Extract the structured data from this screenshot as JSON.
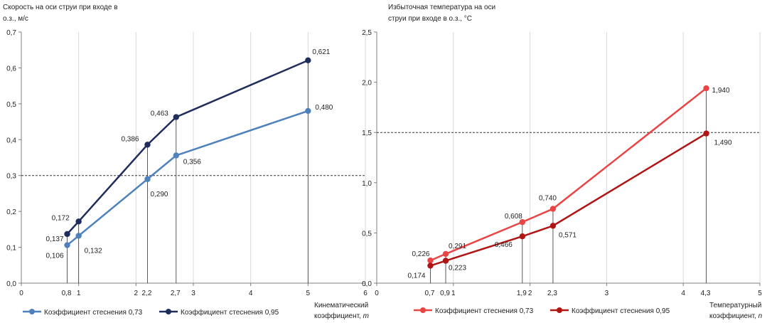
{
  "chart_data": [
    {
      "type": "line",
      "ylabel_lines": [
        "Скорость на оси струи при входе в",
        "о.з., м/с"
      ],
      "xlabel_lines": [
        "Кинематический",
        "коэффициент, "
      ],
      "xlabel_symbol": "m",
      "xlim": [
        0,
        6
      ],
      "ylim": [
        0,
        0.7
      ],
      "x_ticks": [
        "0",
        "1",
        "2",
        "3",
        "4",
        "5",
        "6"
      ],
      "y_ticks": [
        "0,0",
        "0,1",
        "0,2",
        "0,3",
        "0,4",
        "0,5",
        "0,6",
        "0,7"
      ],
      "x_special_ticks": [
        {
          "x": 0.8,
          "label": "0,8"
        },
        {
          "x": 2.2,
          "label": "2,2"
        },
        {
          "x": 2.7,
          "label": "2,7"
        }
      ],
      "reference_line_y": 0.3,
      "grid": "vertical",
      "legend_position": "bottom-left",
      "series": [
        {
          "name": "Коэффициент стеснения 0,73",
          "color": "#4F81BD",
          "x": [
            0.8,
            1,
            2.2,
            2.7,
            5
          ],
          "y": [
            0.106,
            0.132,
            0.29,
            0.356,
            0.48
          ],
          "labels": [
            "0,106",
            "0,132",
            "0,290",
            "0,356",
            "0,480"
          ]
        },
        {
          "name": "Коэффициент стеснения 0,95",
          "color": "#1F2D5C",
          "x": [
            0.8,
            1,
            2.2,
            2.7,
            5
          ],
          "y": [
            0.137,
            0.172,
            0.386,
            0.463,
            0.621
          ],
          "labels": [
            "0,137",
            "0,172",
            "0,386",
            "0,463",
            "0,621"
          ]
        }
      ]
    },
    {
      "type": "line",
      "ylabel_lines": [
        "Избыточная температура на оси",
        "струи при входе в о.з., °С"
      ],
      "xlabel_lines": [
        "Температурный",
        "коэффициент, "
      ],
      "xlabel_symbol": "n",
      "xlim": [
        0,
        5
      ],
      "ylim": [
        0,
        2.5
      ],
      "x_ticks": [
        "0",
        "1",
        "2",
        "3",
        "4",
        "5"
      ],
      "y_ticks": [
        "0,0",
        "0,5",
        "1,0",
        "1,5",
        "2,0",
        "2,5"
      ],
      "x_special_ticks": [
        {
          "x": 0.7,
          "label": "0,7"
        },
        {
          "x": 0.9,
          "label": "0,9"
        },
        {
          "x": 1.9,
          "label": "1,9"
        },
        {
          "x": 2.3,
          "label": "2,3"
        },
        {
          "x": 4.3,
          "label": "4,3"
        }
      ],
      "reference_line_y": 1.5,
      "grid": "vertical",
      "legend_position": "bottom-left",
      "series": [
        {
          "name": "Коэффициент стеснения 0,73",
          "color": "#E94545",
          "x": [
            0.7,
            0.9,
            1.9,
            2.3,
            4.3
          ],
          "y": [
            0.226,
            0.291,
            0.608,
            0.74,
            1.94
          ],
          "labels": [
            "0,226",
            "0,291",
            "0,608",
            "0,740",
            "1,940"
          ]
        },
        {
          "name": "Коэффициент стеснения 0,95",
          "color": "#B01515",
          "x": [
            0.7,
            0.9,
            1.9,
            2.3,
            4.3
          ],
          "y": [
            0.174,
            0.223,
            0.466,
            0.571,
            1.49
          ],
          "labels": [
            "0,174",
            "0,223",
            "0,466",
            "0,571",
            "1,490"
          ]
        }
      ]
    }
  ]
}
